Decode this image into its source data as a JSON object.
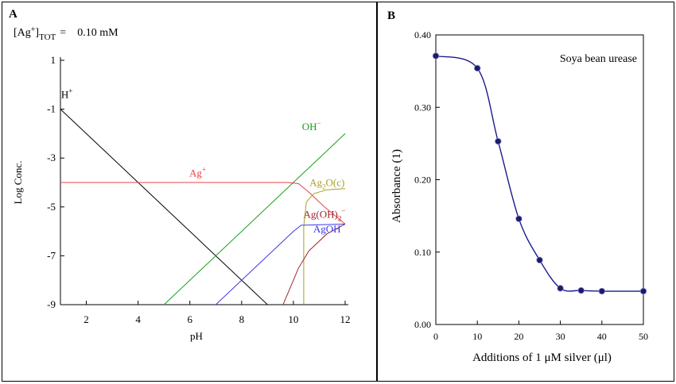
{
  "chart_data": [
    {
      "type": "line",
      "panel_label": "A",
      "header": {
        "lhs_main": "[Ag",
        "lhs_sup": "+",
        "lhs_close": "]",
        "lhs_sub": "TOT",
        "eq": "=",
        "value": "0.10 mM"
      },
      "xlabel": "pH",
      "ylabel": "Log Conc.",
      "xlim": [
        1,
        12
      ],
      "ylim": [
        -9,
        1
      ],
      "xticks": [
        2,
        4,
        6,
        8,
        10,
        12
      ],
      "yticks": [
        1,
        -1,
        -3,
        -5,
        -7,
        -9
      ],
      "grid": false,
      "series": [
        {
          "name": "H+",
          "label_main": "H",
          "label_sup": "+",
          "color": "#000000",
          "label_at": [
            1.25,
            -0.55
          ],
          "points": [
            [
              1,
              -1
            ],
            [
              9,
              -9
            ]
          ]
        },
        {
          "name": "OH−",
          "label_main": "OH",
          "label_sup": "−",
          "color": "#18a018",
          "label_at": [
            10.7,
            -1.85
          ],
          "points": [
            [
              5,
              -9
            ],
            [
              12,
              -2
            ]
          ]
        },
        {
          "name": "Ag+",
          "label_main": "Ag",
          "label_sup": "+",
          "color": "#e8404a",
          "label_at": [
            6.3,
            -3.75
          ],
          "points": [
            [
              1,
              -4
            ],
            [
              9.8,
              -4
            ],
            [
              10.2,
              -4.05
            ],
            [
              10.6,
              -4.4
            ],
            [
              11.2,
              -5
            ],
            [
              12,
              -5.7
            ]
          ]
        },
        {
          "name": "Ag2O(c)",
          "label_pre": "Ag",
          "label_sub": "2",
          "label_post": "O(c)",
          "color": "#a8a020",
          "label_at": [
            11.3,
            -4.15
          ],
          "points": [
            [
              10.4,
              -9
            ],
            [
              10.4,
              -5.8
            ],
            [
              10.5,
              -4.8
            ],
            [
              10.8,
              -4.45
            ],
            [
              11.3,
              -4.3
            ],
            [
              12,
              -4.25
            ]
          ]
        },
        {
          "name": "Ag(OH)2−",
          "label_main": "Ag(OH)",
          "label_sub": "2",
          "label_sup": "−",
          "color": "#a0282a",
          "label_at": [
            11.2,
            -5.45
          ],
          "points": [
            [
              9.6,
              -9
            ],
            [
              10.2,
              -7.5
            ],
            [
              10.6,
              -6.8
            ],
            [
              11.3,
              -6.1
            ],
            [
              12,
              -5.7
            ]
          ]
        },
        {
          "name": "AgOH",
          "label_main": "AgOH",
          "color": "#3a3ae8",
          "label_at": [
            11.3,
            -6.05
          ],
          "points": [
            [
              7,
              -9
            ],
            [
              10,
              -6
            ],
            [
              10.3,
              -5.75
            ],
            [
              12,
              -5.7
            ]
          ]
        }
      ]
    },
    {
      "type": "line",
      "panel_label": "B",
      "annotation": "Soya bean urease",
      "xlabel": "Additions of 1 μM silver (μl)",
      "ylabel": "Absorbance (1)",
      "xlim": [
        0,
        50
      ],
      "ylim": [
        0,
        0.4
      ],
      "xticks": [
        "0",
        "10",
        "20",
        "30",
        "40",
        "50"
      ],
      "yticks": [
        "0.00",
        "0.10",
        "0.20",
        "0.30",
        "0.40"
      ],
      "grid": false,
      "line_color": "#1a1a8c",
      "marker_color": "#1a1a6e",
      "x": [
        0,
        10,
        15,
        20,
        25,
        30,
        35,
        40,
        50
      ],
      "y": [
        0.371,
        0.354,
        0.253,
        0.146,
        0.089,
        0.05,
        0.047,
        0.046,
        0.046
      ]
    }
  ]
}
